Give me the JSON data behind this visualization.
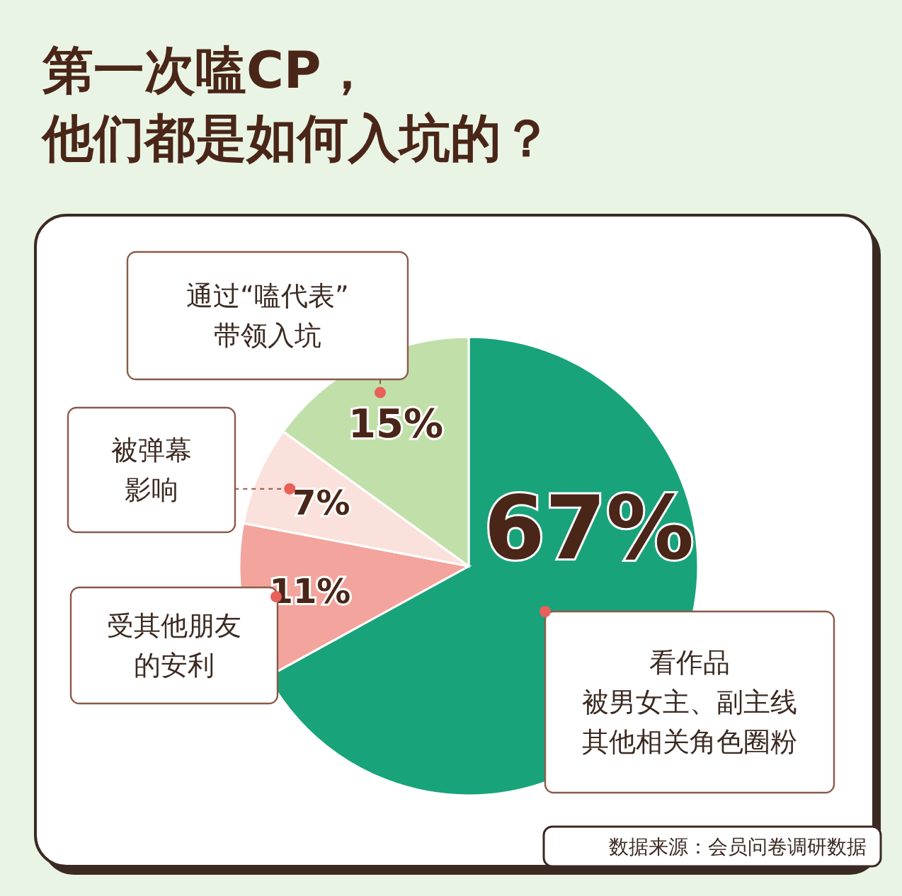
{
  "chart_data": {
    "type": "pie",
    "title": "第一次嗑CP，他们都是如何入坑的？",
    "categories": [
      "看作品被男女主、副主线其他相关角色圈粉",
      "受其他朋友的安利",
      "被弹幕影响",
      "通过“嗑代表”带领入坑"
    ],
    "values": [
      67,
      11,
      7,
      15
    ],
    "colors": [
      "#19a37b",
      "#f3a49c",
      "#fbe1db",
      "#c1e0a9"
    ],
    "value_labels": [
      "67%",
      "11%",
      "7%",
      "15%"
    ],
    "annotations": [
      "数据来源：会员问卷调研数据"
    ]
  }
}
